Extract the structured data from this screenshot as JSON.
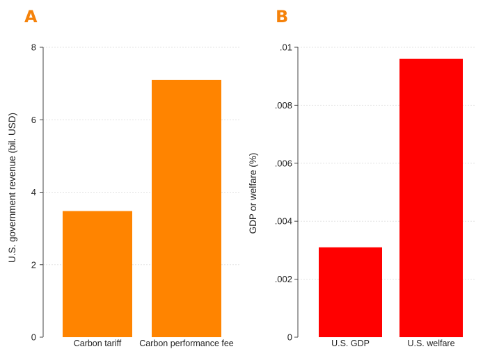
{
  "panels": {
    "a": {
      "letter": "A"
    },
    "b": {
      "letter": "B"
    }
  },
  "colors": {
    "letter": "#f5820a",
    "gridline": "#e3e3e3",
    "axis": "#444444"
  },
  "chart_data": [
    {
      "type": "bar",
      "categories": [
        "Carbon tariff",
        "Carbon performance fee"
      ],
      "values": [
        3.48,
        7.1
      ],
      "title": "",
      "xlabel": "",
      "ylabel": "U.S. government revenue (bil. USD)",
      "ylim": [
        0,
        8
      ],
      "yticks": [
        "0",
        "2",
        "4",
        "6",
        "8"
      ],
      "grid": true,
      "color": "#ff8400"
    },
    {
      "type": "bar",
      "categories": [
        "U.S. GDP",
        "U.S. welfare"
      ],
      "values": [
        0.0031,
        0.0096
      ],
      "title": "",
      "xlabel": "",
      "ylabel": "GDP or welfare (%)",
      "ylim": [
        0,
        0.01
      ],
      "yticks": [
        "0",
        ".002",
        ".004",
        ".006",
        ".008",
        ".01"
      ],
      "grid": true,
      "color": "#ff0000"
    }
  ]
}
